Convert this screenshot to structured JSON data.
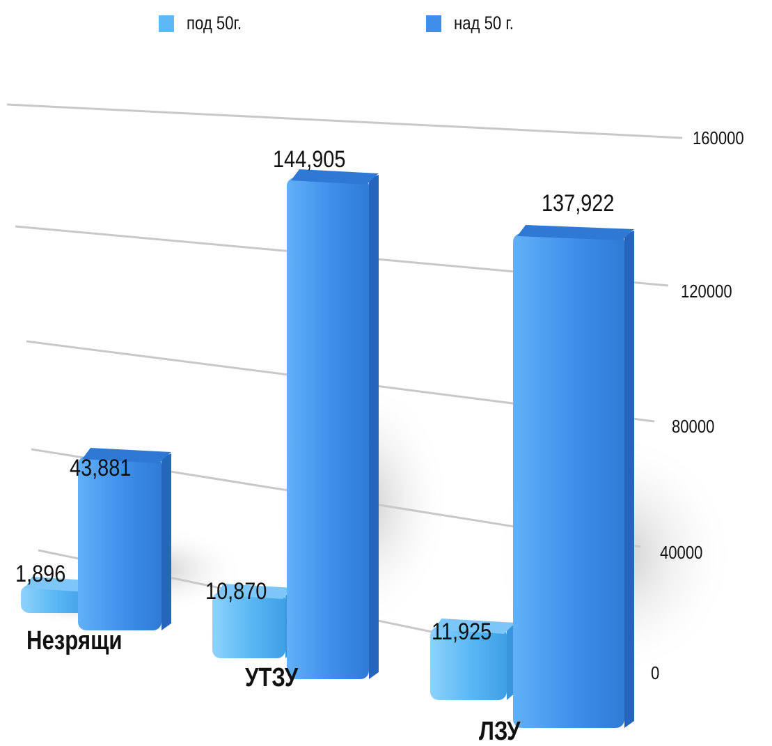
{
  "legend": [
    {
      "label": "под 50г.",
      "color": "#5cb9f5"
    },
    {
      "label": "над 50 г.",
      "color": "#3d8fea"
    }
  ],
  "chart_data": {
    "type": "bar",
    "categories": [
      "Незрящи",
      "УТЗУ",
      "ЛЗУ"
    ],
    "series": [
      {
        "name": "под 50г.",
        "values": [
          1896,
          10870,
          11925
        ],
        "labels": [
          "1,896",
          "10,870",
          "11,925"
        ],
        "color": "#5cb9f5"
      },
      {
        "name": "над 50 г.",
        "values": [
          43881,
          144905,
          137922
        ],
        "labels": [
          "43,881",
          "144,905",
          "137,922"
        ],
        "color": "#3d8fea"
      }
    ],
    "yticks": [
      "0",
      "40000",
      "80000",
      "120000",
      "160000"
    ],
    "ylim": [
      0,
      160000
    ],
    "grid": true,
    "legend_position": "top",
    "title": "",
    "xlabel": "",
    "ylabel": ""
  }
}
